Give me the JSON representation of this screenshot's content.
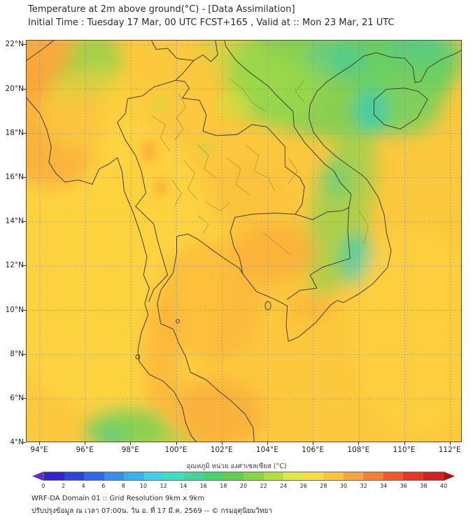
{
  "header": {
    "title": "Temperature at 2m above ground(°C) - [Data Assimilation]",
    "subtitle": "Initial Time : Tuesday 17 Mar, 00 UTC FCST+165 , Valid at :: Mon 23 Mar, 21 UTC"
  },
  "map": {
    "y_axis_labels": [
      "22°N",
      "20°N",
      "18°N",
      "16°N",
      "14°N",
      "12°N",
      "10°N",
      "8°N",
      "6°N",
      "4°N"
    ],
    "x_axis_labels": [
      "94°E",
      "96°E",
      "98°E",
      "100°E",
      "102°E",
      "104°E",
      "106°E",
      "108°E",
      "110°E",
      "112°E"
    ]
  },
  "colorbar": {
    "label": "อุณหภูมิ หน่วย องศาเซลเซียส (°C)",
    "tick_labels": [
      "0",
      "2",
      "4",
      "6",
      "8",
      "10",
      "12",
      "14",
      "16",
      "18",
      "20",
      "22",
      "24",
      "26",
      "28",
      "30",
      "32",
      "34",
      "36",
      "38",
      "40"
    ],
    "segment_colors": [
      "#3023cf",
      "#2b44e0",
      "#2e68ee",
      "#338ff2",
      "#37b2f0",
      "#3bd2ea",
      "#3cdec4",
      "#3dd89a",
      "#46d46c",
      "#5ed24c",
      "#85d83f",
      "#b2e03b",
      "#dfe93c",
      "#f6dd3b",
      "#fdc33a",
      "#fda336",
      "#fb7f30",
      "#f65828",
      "#ee3323",
      "#d6201d"
    ],
    "left_arrow_color": "#5b2fd4",
    "right_arrow_color": "#a81414"
  },
  "footer": {
    "line1": "WRF-DA Domain 01 :: Grid Resolution 9km x 9km",
    "line2": "ปรับปรุงข้อมูล ณ เวลา 07:00น. วัน อ. ที่ 17 มี.ค. 2569 -- © กรมอุตุนิยมวิทยา"
  },
  "chart_data": {
    "type": "heatmap",
    "title": "Temperature at 2m above ground(°C) - [Data Assimilation]",
    "valid_time": "Mon 23 Mar, 21 UTC",
    "initial_time": "Tuesday 17 Mar, 00 UTC",
    "forecast_hour": "FCST+165",
    "xlabel_ticks": [
      94,
      96,
      98,
      100,
      102,
      104,
      106,
      108,
      110,
      112
    ],
    "ylabel_ticks": [
      4,
      6,
      8,
      10,
      12,
      14,
      16,
      18,
      20,
      22
    ],
    "x_range_deg_east": [
      93.4,
      112.5
    ],
    "y_range_deg_north": [
      4.0,
      22.2
    ],
    "units": "°C",
    "colorbar_range": [
      0,
      40
    ],
    "colorbar_step": 2,
    "grid": true,
    "legend_position": "bottom",
    "approx_field_values": [
      {
        "area": "Northern Vietnam / SE China highlands (upper right)",
        "approx_temp_c": "18-24"
      },
      {
        "area": "Hainan island and nearby sea",
        "approx_temp_c": "20-24"
      },
      {
        "area": "Annamite Range along Laos-Vietnam border",
        "approx_temp_c": "20-26"
      },
      {
        "area": "Central Thailand plains and Gulf of Thailand",
        "approx_temp_c": "28-32"
      },
      {
        "area": "Myanmar / Bay of Bengal (left side)",
        "approx_temp_c": "28-30"
      },
      {
        "area": "Cambodia lowlands",
        "approx_temp_c": "30-32"
      },
      {
        "area": "Malay peninsula (south)",
        "approx_temp_c": "30-32"
      },
      {
        "area": "Northern Sumatra highlands (bottom left)",
        "approx_temp_c": "20-24"
      }
    ]
  }
}
